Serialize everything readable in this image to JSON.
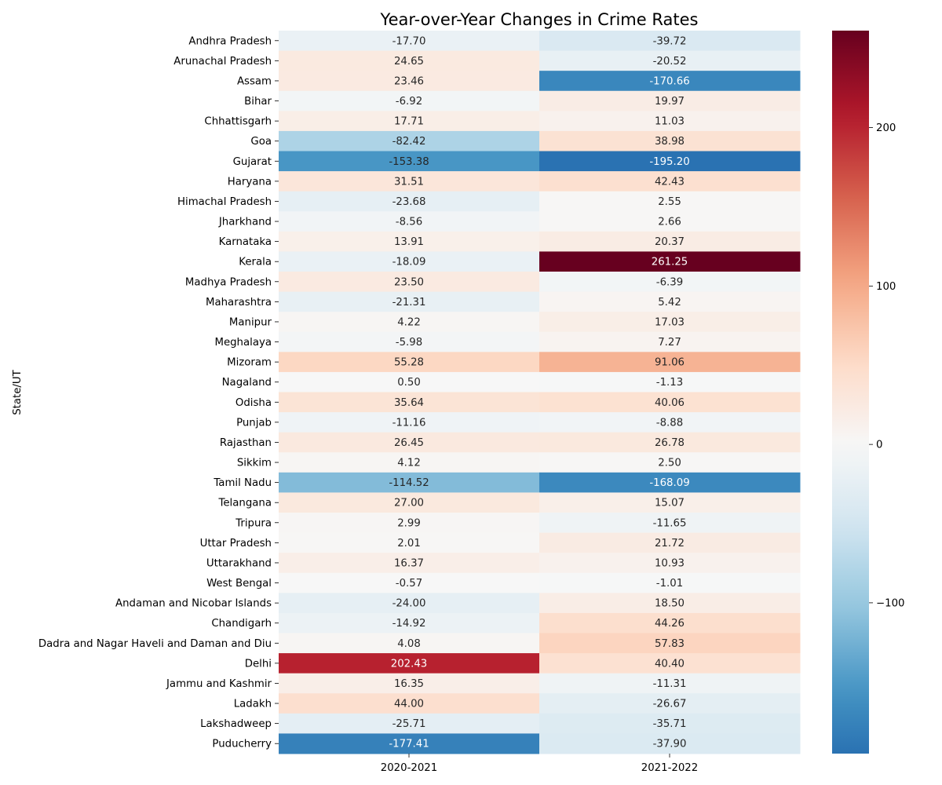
{
  "chart_data": {
    "type": "heatmap",
    "title": "Year-over-Year Changes in Crime Rates",
    "xlabel": "",
    "ylabel": "State/UT",
    "columns": [
      "2020-2021",
      "2021-2022"
    ],
    "rows": [
      "Andhra Pradesh",
      "Arunachal Pradesh",
      "Assam",
      "Bihar",
      "Chhattisgarh",
      "Goa",
      "Gujarat",
      "Haryana",
      "Himachal Pradesh",
      "Jharkhand",
      "Karnataka",
      "Kerala",
      "Madhya Pradesh",
      "Maharashtra",
      "Manipur",
      "Meghalaya",
      "Mizoram",
      "Nagaland",
      "Odisha",
      "Punjab",
      "Rajasthan",
      "Sikkim",
      "Tamil Nadu",
      "Telangana",
      "Tripura",
      "Uttar Pradesh",
      "Uttarakhand",
      "West Bengal",
      "Andaman and Nicobar Islands",
      "Chandigarh",
      "Dadra and Nagar Haveli and Daman and Diu",
      "Delhi",
      "Jammu and Kashmir",
      "Ladakh",
      "Lakshadweep",
      "Puducherry"
    ],
    "values": [
      [
        -17.7,
        -39.72
      ],
      [
        24.65,
        -20.52
      ],
      [
        23.46,
        -170.66
      ],
      [
        -6.92,
        19.97
      ],
      [
        17.71,
        11.03
      ],
      [
        -82.42,
        38.98
      ],
      [
        -153.38,
        -195.2
      ],
      [
        31.51,
        42.43
      ],
      [
        -23.68,
        2.55
      ],
      [
        -8.56,
        2.66
      ],
      [
        13.91,
        20.37
      ],
      [
        -18.09,
        261.25
      ],
      [
        23.5,
        -6.39
      ],
      [
        -21.31,
        5.42
      ],
      [
        4.22,
        17.03
      ],
      [
        -5.98,
        7.27
      ],
      [
        55.28,
        91.06
      ],
      [
        0.5,
        -1.13
      ],
      [
        35.64,
        40.06
      ],
      [
        -11.16,
        -8.88
      ],
      [
        26.45,
        26.78
      ],
      [
        4.12,
        2.5
      ],
      [
        -114.52,
        -168.09
      ],
      [
        27.0,
        15.07
      ],
      [
        2.99,
        -11.65
      ],
      [
        2.01,
        21.72
      ],
      [
        16.37,
        10.93
      ],
      [
        -0.57,
        -1.01
      ],
      [
        -24.0,
        18.5
      ],
      [
        -14.92,
        44.26
      ],
      [
        4.08,
        57.83
      ],
      [
        202.43,
        40.4
      ],
      [
        16.35,
        -11.31
      ],
      [
        44.0,
        -26.67
      ],
      [
        -25.71,
        -35.71
      ],
      [
        -177.41,
        -37.9
      ]
    ],
    "value_format": "2 decimals",
    "colormap": "RdBu_r",
    "vmin": -195.2,
    "vmax": 261.25,
    "center": 0,
    "colorbar": {
      "ticks": [
        -100,
        0,
        100,
        200
      ],
      "tick_labels": [
        "−100",
        "0",
        "100",
        "200"
      ],
      "position": "right"
    },
    "grid": false,
    "legend": "none"
  }
}
